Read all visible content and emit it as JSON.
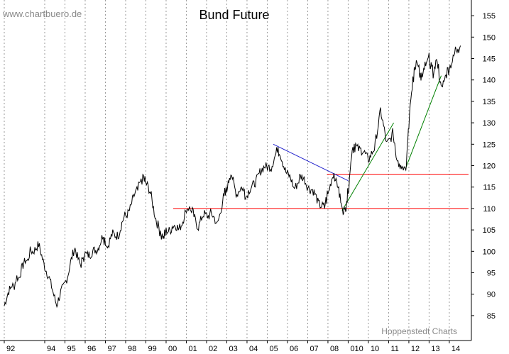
{
  "header": {
    "watermark": "www.chartbuero.de",
    "title": "Bund Future"
  },
  "footer": {
    "source": "Hoppenstedt Charts"
  },
  "chart_data": {
    "type": "line",
    "title": "Bund Future",
    "xlabel": "",
    "ylabel": "",
    "xlim": [
      1992.0,
      2014.95
    ],
    "ylim": [
      82.5,
      157.5
    ],
    "x_ticks": [
      "92",
      "94",
      "95",
      "96",
      "97",
      "98",
      "99",
      "00",
      "01",
      "02",
      "03",
      "04",
      "05",
      "06",
      "07",
      "08",
      "010",
      "10",
      "11",
      "12",
      "13",
      "14"
    ],
    "x_tick_years": [
      1992,
      1994,
      1995,
      1996,
      1997,
      1998,
      1999,
      2000,
      2001,
      2002,
      2003,
      2004,
      2005,
      2006,
      2007,
      2008,
      2009,
      2010,
      2011,
      2012,
      2013,
      2014
    ],
    "y_ticks": [
      85,
      90,
      95,
      100,
      105,
      110,
      115,
      120,
      125,
      130,
      135,
      140,
      145,
      150,
      155
    ],
    "grid": {
      "vertical": true,
      "horizontal": false,
      "style": "dotted"
    },
    "series": [
      {
        "color": "#000000",
        "x": [
          1992.0,
          1992.3,
          1992.7,
          1993.0,
          1993.4,
          1993.7,
          1994.0,
          1994.3,
          1994.6,
          1994.9,
          1995.2,
          1995.5,
          1995.8,
          1996.0,
          1996.3,
          1996.6,
          1996.9,
          1997.1,
          1997.4,
          1997.7,
          1998.0,
          1998.3,
          1998.6,
          1998.85,
          1999.0,
          1999.3,
          1999.6,
          1999.85,
          2000.0,
          2000.3,
          2000.6,
          2000.9,
          2001.1,
          2001.3,
          2001.6,
          2001.9,
          2002.2,
          2002.5,
          2002.8,
          2003.0,
          2003.2,
          2003.5,
          2003.8,
          2004.0,
          2004.3,
          2004.6,
          2004.9,
          2005.2,
          2005.5,
          2005.7,
          2006.0,
          2006.3,
          2006.6,
          2006.9,
          2007.2,
          2007.5,
          2007.8,
          2008.0,
          2008.3,
          2008.5,
          2008.7,
          2008.85,
          2009.0,
          2009.2,
          2009.4,
          2009.7,
          2010.0,
          2010.3,
          2010.6,
          2010.9,
          2011.2,
          2011.4,
          2011.6,
          2011.85,
          2012.0,
          2012.2,
          2012.4,
          2012.6,
          2012.8,
          2013.0,
          2013.2,
          2013.4,
          2013.6,
          2013.8,
          2014.0,
          2014.3,
          2014.55
        ],
        "y": [
          87.5,
          91.0,
          94.0,
          97.0,
          100.5,
          101.0,
          97.0,
          92.0,
          88.0,
          91.0,
          96.0,
          100.5,
          97.0,
          100.0,
          99.0,
          101.0,
          103.5,
          101.0,
          104.0,
          104.5,
          108.5,
          111.0,
          114.5,
          117.5,
          116.0,
          112.0,
          106.0,
          103.0,
          104.5,
          106.0,
          105.0,
          108.5,
          110.5,
          109.0,
          106.0,
          108.5,
          109.0,
          106.0,
          112.0,
          114.5,
          118.5,
          113.5,
          114.5,
          112.5,
          116.0,
          117.5,
          120.5,
          119.0,
          124.5,
          122.0,
          118.0,
          115.0,
          117.0,
          116.5,
          114.0,
          112.0,
          110.0,
          113.5,
          118.0,
          115.0,
          110.0,
          109.5,
          114.0,
          124.0,
          125.0,
          123.0,
          122.0,
          123.5,
          133.5,
          124.5,
          128.0,
          122.0,
          120.0,
          119.5,
          130.0,
          140.0,
          145.0,
          140.0,
          143.0,
          145.0,
          141.5,
          145.0,
          137.5,
          141.0,
          143.0,
          147.0,
          148.0
        ]
      }
    ],
    "trendlines": [
      {
        "color": "#ff0000",
        "x": [
          2000.35,
          2014.95
        ],
        "y": [
          110.0,
          110.0
        ]
      },
      {
        "color": "#ff0000",
        "x": [
          2007.95,
          2014.95
        ],
        "y": [
          118.0,
          118.0
        ]
      },
      {
        "color": "#2020cc",
        "x": [
          2005.3,
          2009.0
        ],
        "y": [
          125.0,
          116.5
        ]
      },
      {
        "color": "#008000",
        "x": [
          2008.7,
          2011.25
        ],
        "y": [
          109.5,
          130.0
        ]
      },
      {
        "color": "#008000",
        "x": [
          2011.85,
          2013.6
        ],
        "y": [
          119.5,
          141.0
        ]
      }
    ]
  }
}
